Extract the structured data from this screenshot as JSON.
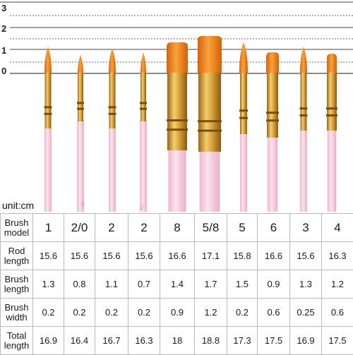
{
  "ruler": {
    "labels": [
      "3",
      "2",
      "1",
      "0"
    ]
  },
  "unit_label": "unit:cm",
  "brush_marks": [
    "8",
    "2"
  ],
  "table": {
    "rows": [
      {
        "header": "Brush model",
        "values": [
          "1",
          "2/0",
          "2",
          "2",
          "8",
          "5/8",
          "5",
          "6",
          "3",
          "4"
        ]
      },
      {
        "header": "Rod length",
        "values": [
          "15.6",
          "15.6",
          "15.6",
          "15.6",
          "16.6",
          "17.1",
          "15.8",
          "16.6",
          "15.6",
          "16.3"
        ]
      },
      {
        "header": "Brush length",
        "values": [
          "1.3",
          "0.8",
          "1.1",
          "0.7",
          "1.4",
          "1.7",
          "1.5",
          "0.9",
          "1.3",
          "1.2"
        ]
      },
      {
        "header": "Brush width",
        "values": [
          "0.2",
          "0.2",
          "0.2",
          "0.2",
          "0.9",
          "1.2",
          "0.2",
          "0.6",
          "0.25",
          "0.6"
        ]
      },
      {
        "header": "Total length",
        "values": [
          "16.9",
          "16.4",
          "16.7",
          "16.3",
          "18",
          "18.8",
          "17.3",
          "17.5",
          "16.9",
          "17.5"
        ]
      }
    ]
  },
  "colors": {
    "bristle": "#f08a16",
    "bristle_tip": "#e06a0a",
    "ferrule": "#d9a23a",
    "ferrule_dark": "#a8701a",
    "handle": "#f7c9dc",
    "ruler_line": "#555555"
  }
}
